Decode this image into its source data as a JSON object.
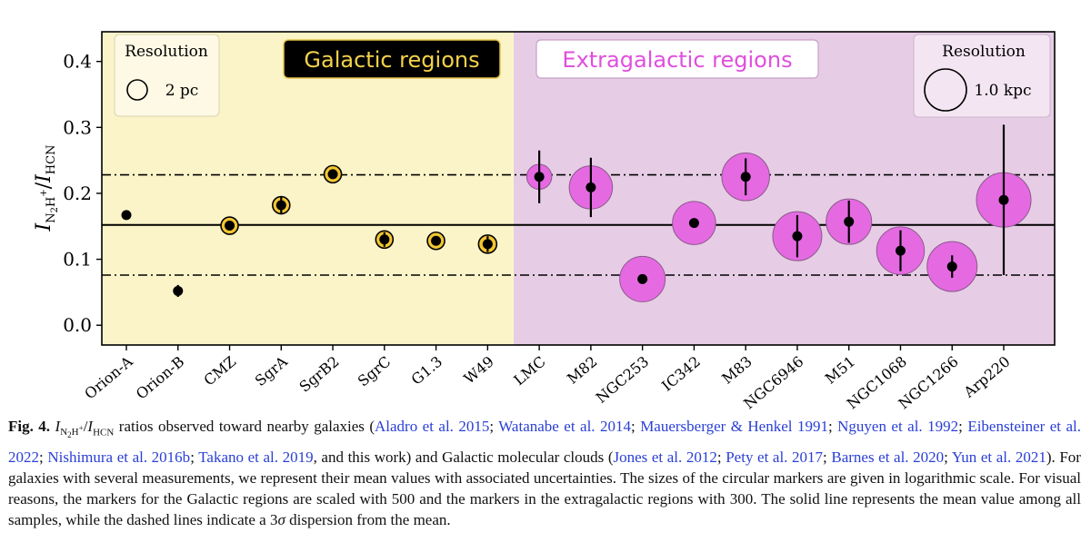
{
  "figure": {
    "panels": {
      "galactic_label": "Galactic regions",
      "extragalactic_label": "Extragalactic regions",
      "galactic_bg": "#fbf4c9",
      "extragalactic_bg": "#e6cde5",
      "galactic_marker_fill": "#f2c632",
      "extragalactic_marker_fill": "#e56ae2"
    },
    "legends": {
      "galactic": {
        "title": "Resolution",
        "value": "2 pc"
      },
      "extragalactic": {
        "title": "Resolution",
        "value": "1.0 kpc"
      }
    },
    "y_axis_label_main": "I",
    "y_axis_label_sub1": "N",
    "y_axis_label_sub1b": "2",
    "y_axis_label_sub1c": "H",
    "y_axis_label_sup": "+",
    "y_axis_label_slash": "/",
    "y_axis_label_main2": "I",
    "y_axis_label_sub2": "HCN"
  },
  "chart_data": {
    "type": "scatter",
    "ylim": [
      -0.03,
      0.445
    ],
    "yticks": [
      "0.0",
      "0.1",
      "0.2",
      "0.3",
      "0.4"
    ],
    "ytick_values": [
      0.0,
      0.1,
      0.2,
      0.3,
      0.4
    ],
    "categories": [
      "Orion-A",
      "Orion-B",
      "CMZ",
      "SgrA",
      "SgrB2",
      "SgrC",
      "G1.3",
      "W49",
      "LMC",
      "M82",
      "NGC253",
      "IC342",
      "M83",
      "NGC6946",
      "M51",
      "NGC1068",
      "NGC1266",
      "Arp220"
    ],
    "groups": [
      "galactic",
      "galactic",
      "galactic",
      "galactic",
      "galactic",
      "galactic",
      "galactic",
      "galactic",
      "extragalactic",
      "extragalactic",
      "extragalactic",
      "extragalactic",
      "extragalactic",
      "extragalactic",
      "extragalactic",
      "extragalactic",
      "extragalactic",
      "extragalactic"
    ],
    "values": [
      0.167,
      0.052,
      0.151,
      0.182,
      0.229,
      0.13,
      0.128,
      0.123,
      0.225,
      0.209,
      0.07,
      0.155,
      0.225,
      0.135,
      0.157,
      0.113,
      0.089,
      0.19
    ],
    "errors": [
      0.0,
      0.009,
      0.007,
      0.013,
      0.0,
      0.011,
      0.0,
      0.012,
      0.04,
      0.045,
      0.0,
      0.0,
      0.028,
      0.032,
      0.032,
      0.031,
      0.017,
      0.114
    ],
    "marker_sizes": [
      0,
      0,
      1.0,
      1.0,
      1.0,
      1.0,
      1.0,
      1.05,
      0.55,
      0.95,
      1.0,
      0.95,
      1.05,
      1.08,
      1.0,
      1.05,
      1.1,
      1.2
    ],
    "mean": 0.152,
    "dispersion_lines": [
      0.228,
      0.076
    ],
    "grid": false
  },
  "caption": {
    "fig_label": "Fig. 4.",
    "ratio_text": "I",
    "t1": " ratios observed toward nearby galaxies (",
    "r1": "Aladro et al. 2015",
    "s1": "; ",
    "r2": "Watanabe et al. 2014",
    "s2": "; ",
    "r3": "Mauersberger & Henkel 1991",
    "s3": "; ",
    "r4": "Nguyen et al. 1992",
    "s4": "; ",
    "r5": "Eibensteiner et al. 2022",
    "s5": "; ",
    "r6": "Nishimura et al. 2016b",
    "s6": "; ",
    "r7": "Takano et al. 2019",
    "t2": ", and this work) and Galactic molecular clouds (",
    "r8": "Jones et al. 2012",
    "s8": "; ",
    "r9": "Pety et al. 2017",
    "s9": "; ",
    "r10": "Barnes et al. 2020",
    "s10": "; ",
    "r11": "Yun et al. 2021",
    "t3": "). For galaxies with several measurements, we represent their mean values with associated uncertainties. The sizes of the circular markers are given in logarithmic scale. For visual reasons, the markers for the Galactic regions are scaled with 500 and the markers in the extragalactic regions with 300. The solid line represents the mean value among all samples, while the dashed lines indicate a 3",
    "sigma": "σ",
    "t4": " dispersion from the mean."
  }
}
